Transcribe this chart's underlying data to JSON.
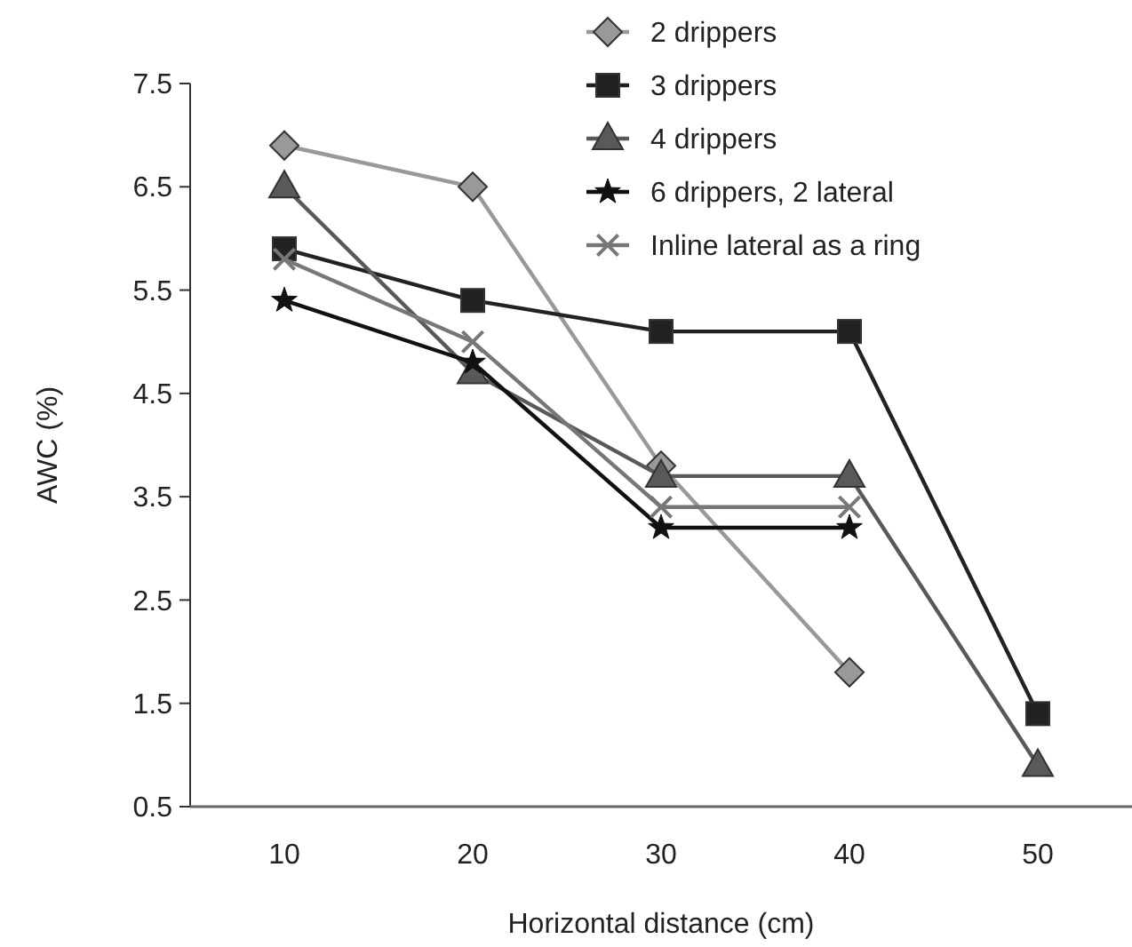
{
  "chart_data": {
    "type": "line",
    "xlabel": "Horizontal distance (cm)",
    "ylabel": "AWC (%)",
    "categories": [
      "10",
      "20",
      "30",
      "40",
      "50"
    ],
    "ylim": [
      0.5,
      7.5
    ],
    "yticks": [
      0.5,
      1.5,
      2.5,
      3.5,
      4.5,
      5.5,
      6.5,
      7.5
    ],
    "legend": "top right",
    "grid": false,
    "series": [
      {
        "name": "2 drippers",
        "color": "#999999",
        "marker": "diamond",
        "values": [
          6.9,
          6.5,
          3.8,
          1.8,
          null
        ]
      },
      {
        "name": "3 drippers",
        "color": "#222222",
        "marker": "square",
        "values": [
          5.9,
          5.4,
          5.1,
          5.1,
          1.4
        ]
      },
      {
        "name": "4 drippers",
        "color": "#595959",
        "marker": "triangle",
        "values": [
          6.5,
          4.7,
          3.7,
          3.7,
          0.9
        ]
      },
      {
        "name": "6 drippers, 2 lateral",
        "color": "#111111",
        "marker": "star",
        "values": [
          5.4,
          4.8,
          3.2,
          3.2,
          null
        ]
      },
      {
        "name": "Inline lateral as a ring",
        "color": "#777777",
        "marker": "cross",
        "values": [
          5.8,
          5.0,
          3.4,
          3.4,
          null
        ]
      }
    ]
  }
}
